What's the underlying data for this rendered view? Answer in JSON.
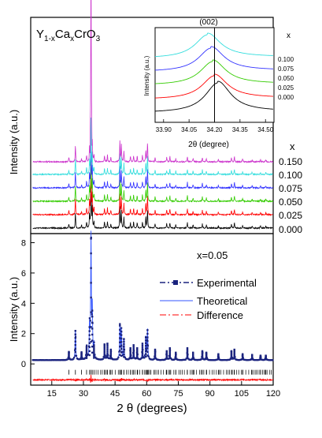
{
  "chart_data": [
    {
      "type": "line",
      "title": "Y1-xCaxCrO3",
      "title_parts": {
        "base": "Y",
        "sub1": "1-x",
        "mid": "Ca",
        "sub2": "x",
        "tail": "CrO",
        "sub3": "3"
      },
      "ylabel": "Intensity (a.u.)",
      "legend_title": "x",
      "series": [
        {
          "name": "0.000",
          "color": "#000000"
        },
        {
          "name": "0.025",
          "color": "#ff0000"
        },
        {
          "name": "0.050",
          "color": "#33cc00"
        },
        {
          "name": "0.075",
          "color": "#3333ff"
        },
        {
          "name": "0.100",
          "color": "#33dddd"
        },
        {
          "name": "0.150",
          "color": "#cc33cc"
        }
      ],
      "peaks_2theta": [
        23.1,
        26.2,
        29.1,
        31.5,
        32.9,
        33.6,
        34.2,
        35.0,
        40.0,
        41.4,
        43.0,
        47.3,
        48.0,
        49.2,
        52.3,
        53.8,
        55.5,
        58.0,
        59.6,
        60.4,
        64.0,
        69.5,
        71.0,
        73.8,
        79.3,
        82.0,
        86.4,
        88.3,
        94.0,
        100.2,
        101.6,
        105.5,
        110.0,
        114.0,
        116.5
      ],
      "peak_heights": [
        0.08,
        0.3,
        0.06,
        0.12,
        0.25,
        1.0,
        0.35,
        0.12,
        0.12,
        0.12,
        0.08,
        0.38,
        0.3,
        0.2,
        0.1,
        0.12,
        0.1,
        0.12,
        0.22,
        0.35,
        0.08,
        0.08,
        0.1,
        0.06,
        0.1,
        0.06,
        0.08,
        0.06,
        0.05,
        0.08,
        0.1,
        0.05,
        0.04,
        0.04,
        0.04
      ]
    },
    {
      "type": "line",
      "title": "(002)",
      "xlabel": "2θ (degree)",
      "ylabel": "Intensity (a.u.)",
      "x_ticks": [
        "33.90",
        "34.05",
        "34.20",
        "34.35",
        "34.50"
      ],
      "xlim": [
        33.85,
        34.55
      ],
      "legend_title": "x",
      "marker_x": 34.2,
      "series": [
        {
          "name": "0.000",
          "color": "#000000",
          "center": 34.22
        },
        {
          "name": "0.025",
          "color": "#ff0000",
          "center": 34.2
        },
        {
          "name": "0.050",
          "color": "#33cc00",
          "center": 34.19
        },
        {
          "name": "0.075",
          "color": "#3333ff",
          "center": 34.18
        },
        {
          "name": "0.100",
          "color": "#33dddd",
          "center": 34.16
        }
      ]
    },
    {
      "type": "line",
      "xlabel": "2 θ  (degrees)",
      "ylabel": "Intensity (a.u.)",
      "annotation": "x=0.05",
      "xlim": [
        5,
        120
      ],
      "ylim": [
        -1.4,
        8.6
      ],
      "x_ticks": [
        "15",
        "30",
        "45",
        "60",
        "75",
        "90",
        "105",
        "120"
      ],
      "y_ticks": [
        "0",
        "2",
        "4",
        "6",
        "8"
      ],
      "series": [
        {
          "name": "Experimental",
          "color": "#1a237e",
          "style": "dash-dot-square"
        },
        {
          "name": "Theoretical",
          "color": "#3355ff",
          "style": "line"
        },
        {
          "name": "Difference",
          "color": "#ff0000",
          "style": "dash-dot"
        }
      ],
      "peaks": [
        {
          "x": 23.1,
          "y": 0.55
        },
        {
          "x": 26.2,
          "y": 1.95
        },
        {
          "x": 29.1,
          "y": 0.5
        },
        {
          "x": 31.5,
          "y": 0.9
        },
        {
          "x": 32.9,
          "y": 2.2
        },
        {
          "x": 33.6,
          "y": 8.1
        },
        {
          "x": 34.2,
          "y": 3.3
        },
        {
          "x": 35.0,
          "y": 1.0
        },
        {
          "x": 40.0,
          "y": 1.05
        },
        {
          "x": 41.4,
          "y": 1.1
        },
        {
          "x": 43.0,
          "y": 0.7
        },
        {
          "x": 47.3,
          "y": 2.3
        },
        {
          "x": 48.0,
          "y": 1.9
        },
        {
          "x": 49.2,
          "y": 1.4
        },
        {
          "x": 52.3,
          "y": 0.8
        },
        {
          "x": 53.8,
          "y": 1.0
        },
        {
          "x": 55.5,
          "y": 0.8
        },
        {
          "x": 58.0,
          "y": 1.1
        },
        {
          "x": 59.6,
          "y": 1.5
        },
        {
          "x": 60.4,
          "y": 2.0
        },
        {
          "x": 64.0,
          "y": 0.7
        },
        {
          "x": 69.5,
          "y": 0.6
        },
        {
          "x": 71.0,
          "y": 0.8
        },
        {
          "x": 73.8,
          "y": 0.5
        },
        {
          "x": 79.3,
          "y": 0.8
        },
        {
          "x": 82.0,
          "y": 0.5
        },
        {
          "x": 86.4,
          "y": 0.6
        },
        {
          "x": 88.3,
          "y": 0.5
        },
        {
          "x": 94.0,
          "y": 0.4
        },
        {
          "x": 100.2,
          "y": 0.6
        },
        {
          "x": 101.6,
          "y": 0.7
        },
        {
          "x": 105.5,
          "y": 0.4
        },
        {
          "x": 110.0,
          "y": 0.35
        },
        {
          "x": 114.0,
          "y": 0.3
        },
        {
          "x": 116.5,
          "y": 0.3
        }
      ],
      "background": 0.25,
      "difference_offset": -1.05,
      "bragg_ticks_offset": -0.55
    }
  ]
}
